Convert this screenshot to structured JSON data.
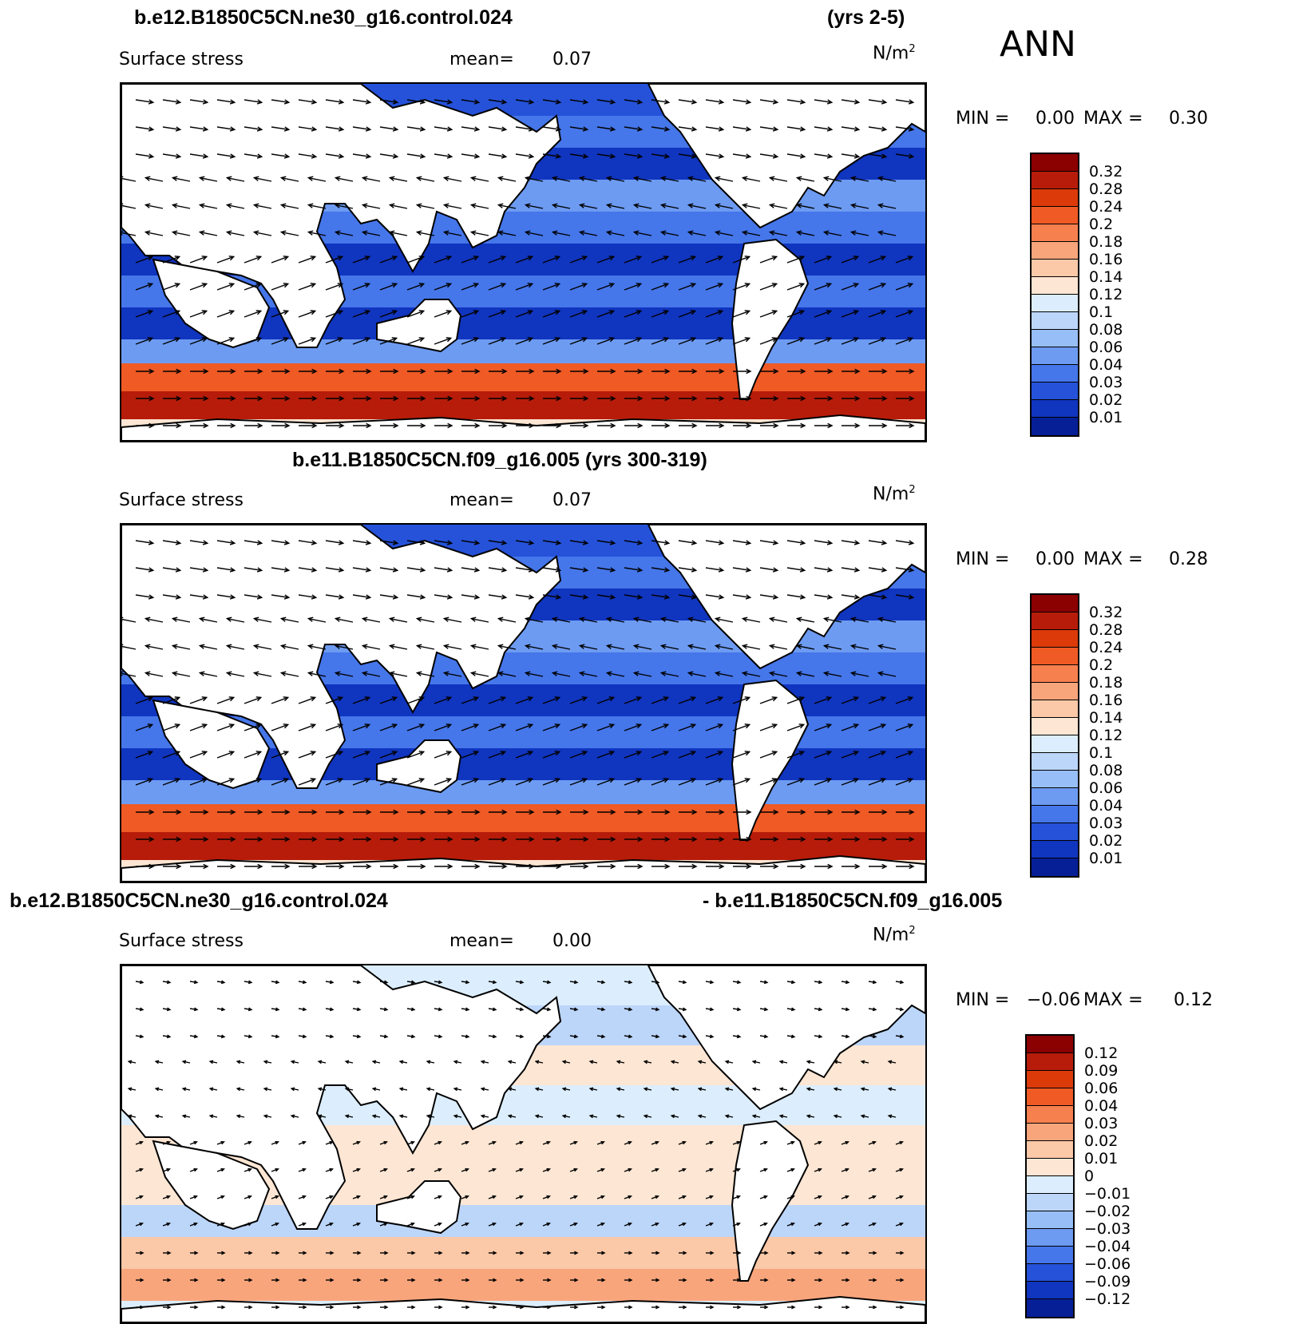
{
  "season": "ANN",
  "panels": [
    {
      "title_left": "b.e12.B1850C5CN.ne30_g16.control.024",
      "title_right": "(yrs 2-5)",
      "variable": "Surface stress",
      "mean_label": "mean=",
      "mean_value": "0.07",
      "units_base": "N/m",
      "units_exp": "2",
      "min_label": "MIN =",
      "min_value": "0.00",
      "max_label": "MAX =",
      "max_value": "0.30",
      "colorbar": {
        "labels": [
          "0.32",
          "0.28",
          "0.24",
          "0.2",
          "0.18",
          "0.16",
          "0.14",
          "0.12",
          "0.1",
          "0.08",
          "0.06",
          "0.04",
          "0.03",
          "0.02",
          "0.01"
        ],
        "colors": [
          "#8b0000",
          "#b71c0a",
          "#dd3a0a",
          "#f05a25",
          "#f7804f",
          "#f9a57c",
          "#fbc8a8",
          "#fde6d3",
          "#dceefd",
          "#bcd6fa",
          "#97bef7",
          "#6d9bf2",
          "#4576ea",
          "#2552d9",
          "#1035bf",
          "#061f96"
        ]
      }
    },
    {
      "title_center": "b.e11.B1850C5CN.f09_g16.005 (yrs 300-319)",
      "variable": "Surface stress",
      "mean_label": "mean=",
      "mean_value": "0.07",
      "units_base": "N/m",
      "units_exp": "2",
      "min_label": "MIN =",
      "min_value": "0.00",
      "max_label": "MAX =",
      "max_value": "0.28",
      "colorbar": {
        "labels": [
          "0.32",
          "0.28",
          "0.24",
          "0.2",
          "0.18",
          "0.16",
          "0.14",
          "0.12",
          "0.1",
          "0.08",
          "0.06",
          "0.04",
          "0.03",
          "0.02",
          "0.01"
        ],
        "colors": [
          "#8b0000",
          "#b71c0a",
          "#dd3a0a",
          "#f05a25",
          "#f7804f",
          "#f9a57c",
          "#fbc8a8",
          "#fde6d3",
          "#dceefd",
          "#bcd6fa",
          "#97bef7",
          "#6d9bf2",
          "#4576ea",
          "#2552d9",
          "#1035bf",
          "#061f96"
        ]
      }
    },
    {
      "title_left": "b.e12.B1850C5CN.ne30_g16.control.024",
      "title_right": "- b.e11.B1850C5CN.f09_g16.005",
      "variable": "Surface stress",
      "mean_label": "mean=",
      "mean_value": "0.00",
      "units_base": "N/m",
      "units_exp": "2",
      "min_label": "MIN =",
      "min_value": "−0.06",
      "max_label": "MAX =",
      "max_value": "0.12",
      "colorbar": {
        "labels": [
          "0.12",
          "0.09",
          "0.06",
          "0.04",
          "0.03",
          "0.02",
          "0.01",
          "0",
          "−0.01",
          "−0.02",
          "−0.03",
          "−0.04",
          "−0.06",
          "−0.09",
          "−0.12"
        ],
        "colors": [
          "#8b0000",
          "#b71c0a",
          "#dd3a0a",
          "#f05a25",
          "#f7804f",
          "#f9a57c",
          "#fbc8a8",
          "#fde6d3",
          "#dceefd",
          "#bcd6fa",
          "#97bef7",
          "#6d9bf2",
          "#4576ea",
          "#2552d9",
          "#1035bf",
          "#061f96"
        ]
      }
    }
  ]
}
